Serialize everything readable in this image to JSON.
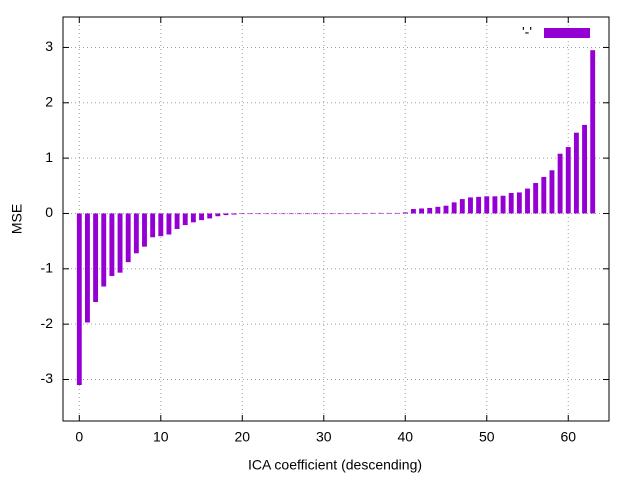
{
  "chart_data": {
    "type": "bar",
    "x_label": "ICA coefficient (descending)",
    "y_label": "MSE",
    "x": [
      0,
      1,
      2,
      3,
      4,
      5,
      6,
      7,
      8,
      9,
      10,
      11,
      12,
      13,
      14,
      15,
      16,
      17,
      18,
      19,
      20,
      21,
      22,
      23,
      24,
      25,
      26,
      27,
      28,
      29,
      30,
      31,
      32,
      33,
      34,
      35,
      36,
      37,
      38,
      39,
      40,
      41,
      42,
      43,
      44,
      45,
      46,
      47,
      48,
      49,
      50,
      51,
      52,
      53,
      54,
      55,
      56,
      57,
      58,
      59,
      60,
      61,
      62,
      63
    ],
    "series": [
      {
        "name": "'-'",
        "color": "#9400d3",
        "values": [
          -3.1,
          -1.97,
          -1.6,
          -1.32,
          -1.13,
          -1.07,
          -0.88,
          -0.72,
          -0.6,
          -0.43,
          -0.41,
          -0.38,
          -0.28,
          -0.21,
          -0.16,
          -0.12,
          -0.09,
          -0.05,
          -0.03,
          -0.02,
          -0.01,
          -0.01,
          -0.01,
          -0.01,
          -0.01,
          -0.01,
          -0.01,
          0,
          0,
          0,
          0,
          0,
          0,
          0,
          0,
          0,
          0.01,
          0.01,
          0.01,
          0.01,
          0.02,
          0.08,
          0.09,
          0.1,
          0.12,
          0.14,
          0.2,
          0.26,
          0.29,
          0.3,
          0.31,
          0.31,
          0.32,
          0.37,
          0.38,
          0.45,
          0.55,
          0.66,
          0.78,
          1.08,
          1.2,
          1.46,
          1.6,
          2.95
        ]
      }
    ],
    "xlim": [
      -2,
      65
    ],
    "xticks": [
      0,
      10,
      20,
      30,
      40,
      50,
      60
    ],
    "ylim": [
      -3.75,
      3.55
    ],
    "yticks": [
      -3,
      -2,
      -1,
      0,
      1,
      2,
      3
    ],
    "grid": true,
    "legend": "top-right"
  }
}
